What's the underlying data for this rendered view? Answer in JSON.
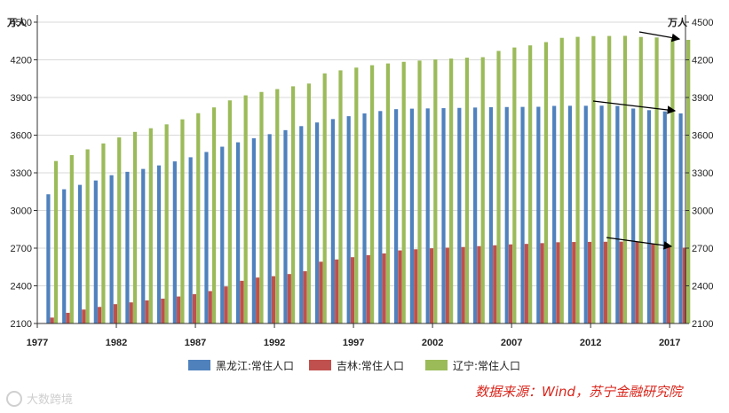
{
  "chart_data": {
    "type": "bar",
    "title": "",
    "left_unit": "万人",
    "right_unit": "万人",
    "ylim": [
      2100,
      4500
    ],
    "yticks": [
      2100,
      2400,
      2700,
      3000,
      3300,
      3600,
      3900,
      4200,
      4500
    ],
    "xlim": [
      1977,
      2018
    ],
    "xticks": [
      1977,
      1982,
      1987,
      1992,
      1997,
      2002,
      2007,
      2012,
      2017
    ],
    "x": [
      1978,
      1979,
      1980,
      1981,
      1982,
      1983,
      1984,
      1985,
      1986,
      1987,
      1988,
      1989,
      1990,
      1991,
      1992,
      1993,
      1994,
      1995,
      1996,
      1997,
      1998,
      1999,
      2000,
      2001,
      2002,
      2003,
      2004,
      2005,
      2006,
      2007,
      2008,
      2009,
      2010,
      2011,
      2012,
      2013,
      2014,
      2015,
      2016,
      2017,
      2018
    ],
    "series": [
      {
        "name": "黑龙江:常住人口",
        "color": "#4f81bd",
        "values": [
          3129,
          3169,
          3204,
          3239,
          3281,
          3308,
          3331,
          3359,
          3391,
          3424,
          3466,
          3508,
          3543,
          3575,
          3608,
          3640,
          3672,
          3701,
          3728,
          3751,
          3773,
          3792,
          3807,
          3811,
          3813,
          3815,
          3817,
          3820,
          3823,
          3824,
          3825,
          3826,
          3833,
          3834,
          3834,
          3835,
          3833,
          3812,
          3799,
          3789,
          3773
        ]
      },
      {
        "name": "吉林:常住人口",
        "color": "#c0504d",
        "values": [
          2147,
          2185,
          2211,
          2232,
          2254,
          2268,
          2284,
          2298,
          2315,
          2334,
          2358,
          2395,
          2440,
          2466,
          2477,
          2494,
          2516,
          2592,
          2610,
          2628,
          2644,
          2658,
          2682,
          2691,
          2699,
          2704,
          2709,
          2716,
          2723,
          2730,
          2734,
          2740,
          2747,
          2749,
          2750,
          2751,
          2752,
          2753,
          2733,
          2717,
          2704
        ]
      },
      {
        "name": "辽宁:常住人口",
        "color": "#9bbb59",
        "values": [
          3394,
          3441,
          3487,
          3534,
          3582,
          3626,
          3655,
          3686,
          3726,
          3775,
          3821,
          3877,
          3917,
          3944,
          3967,
          3989,
          4011,
          4092,
          4116,
          4138,
          4157,
          4171,
          4184,
          4194,
          4203,
          4210,
          4217,
          4221,
          4271,
          4298,
          4315,
          4341,
          4375,
          4383,
          4389,
          4390,
          4391,
          4382,
          4378,
          4369,
          4359
        ]
      }
    ]
  },
  "source_note": "数据来源：Wind，苏宁金融研究院",
  "watermark": "大数跨境"
}
